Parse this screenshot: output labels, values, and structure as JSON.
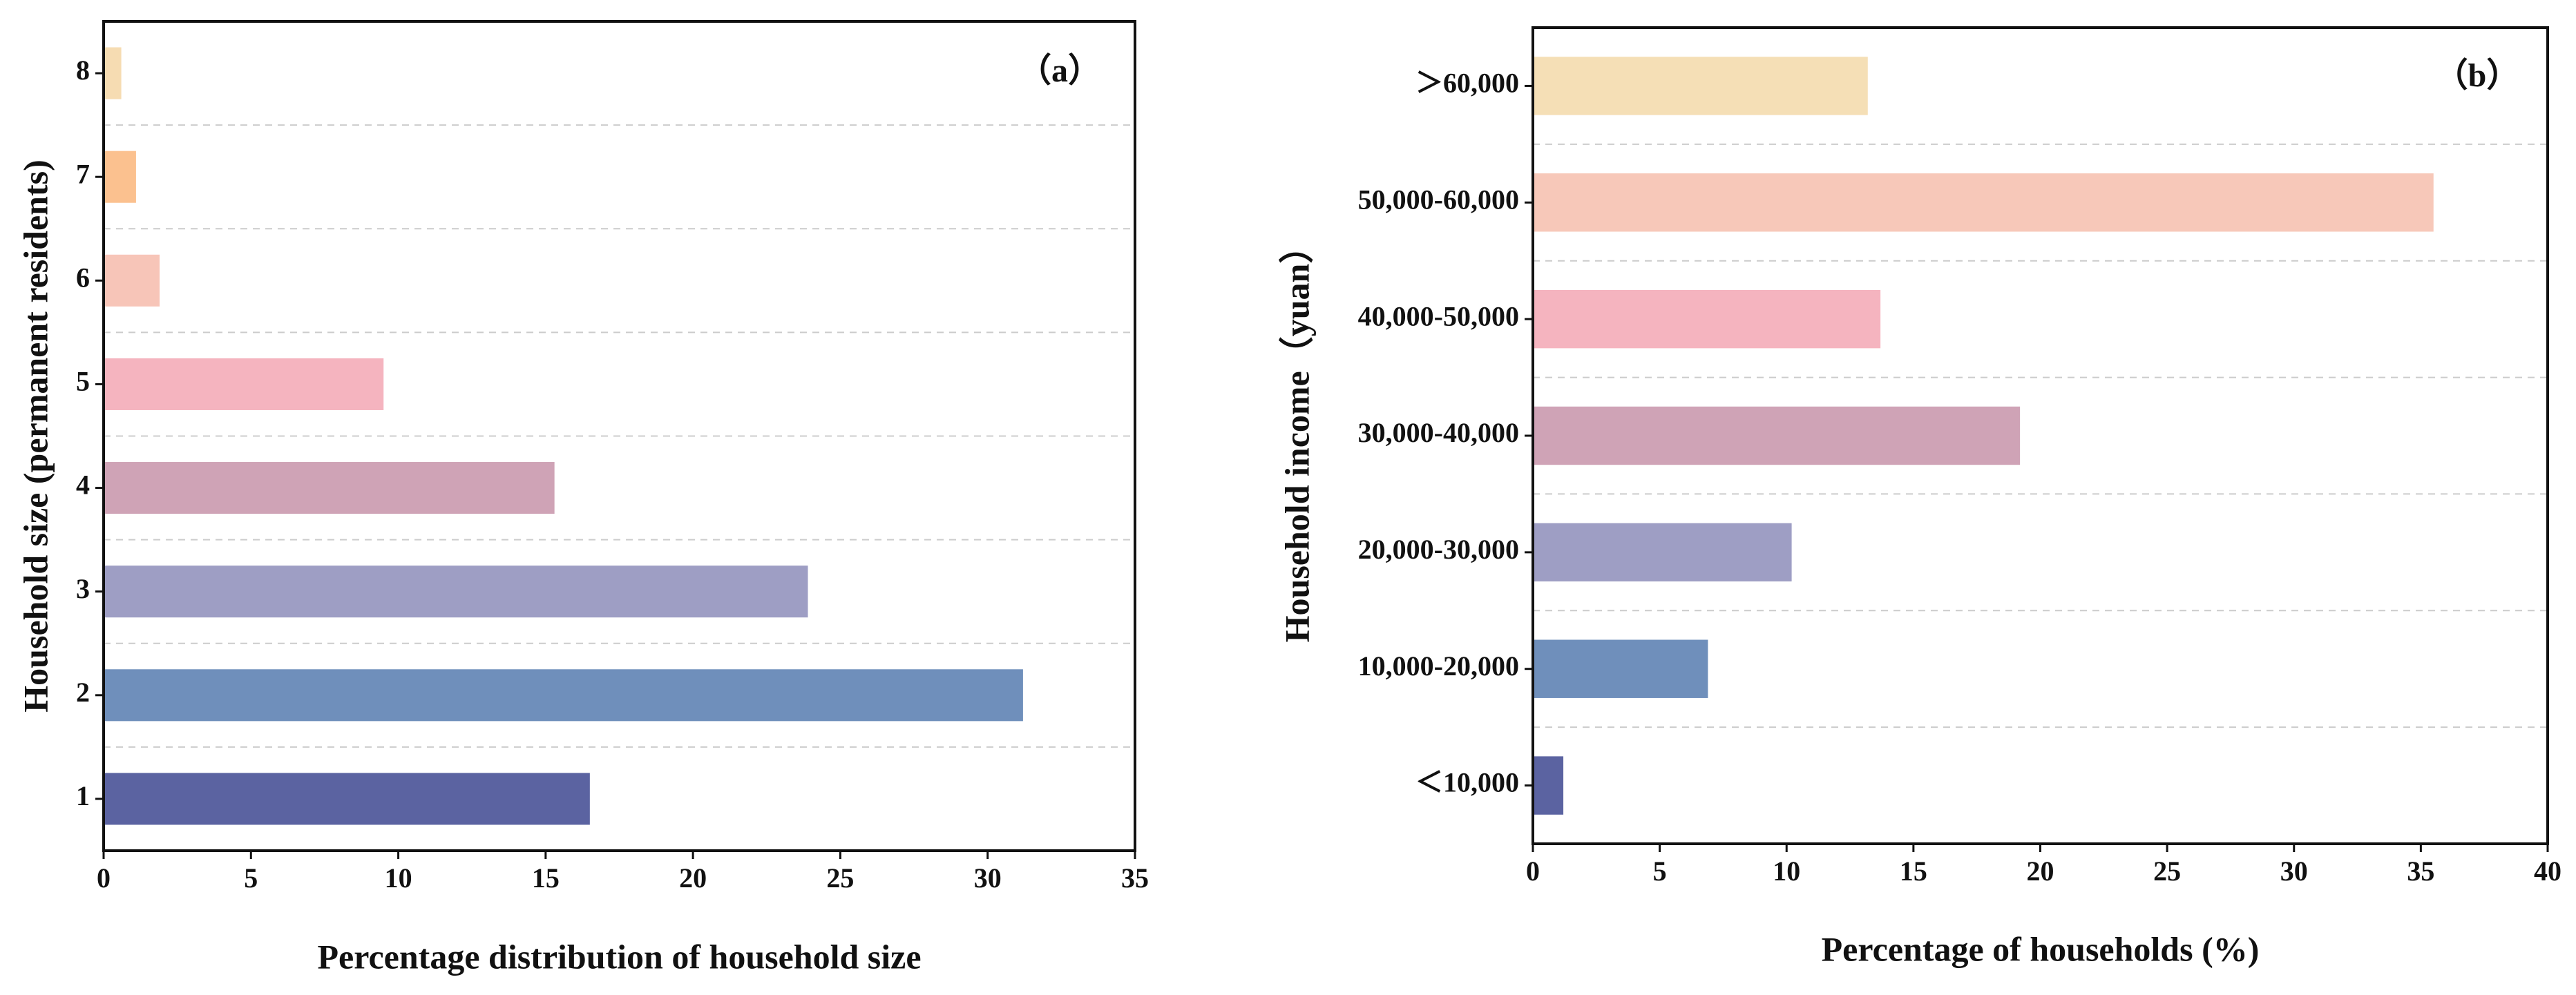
{
  "chart_data": [
    {
      "type": "barh",
      "annotation": "（a）",
      "xlabel": "Percentage distribution of household size",
      "ylabel": "Household size (permanent residents)",
      "categories": [
        "1",
        "2",
        "3",
        "4",
        "5",
        "6",
        "7",
        "8"
      ],
      "values": [
        16.5,
        31.2,
        23.9,
        15.3,
        9.5,
        1.9,
        1.1,
        0.6
      ],
      "colors": [
        "#5b63a1",
        "#6f8fbb",
        "#9e9ec4",
        "#cfa3b6",
        "#f5b4bf",
        "#f7c5b8",
        "#fbc18f",
        "#f6dcb2"
      ],
      "xlim": [
        0,
        35
      ],
      "xticks": [
        0,
        5,
        10,
        15,
        20,
        25,
        30,
        35
      ],
      "grid": true
    },
    {
      "type": "barh",
      "annotation": "（b）",
      "xlabel": "Percentage of households (%)",
      "ylabel": "Household income（yuan）",
      "categories": [
        "＜10,000",
        "10,000-20,000",
        "20,000-30,000",
        "30,000-40,000",
        "40,000-50,000",
        "50,000-60,000",
        "＞60,000"
      ],
      "values": [
        1.2,
        6.9,
        10.2,
        19.2,
        13.7,
        35.5,
        13.2
      ],
      "colors": [
        "#5b63a1",
        "#6f8fbb",
        "#9e9ec4",
        "#cfa3b6",
        "#f5b4bf",
        "#f7c8b9",
        "#f5dfb6"
      ],
      "xlim": [
        0,
        40
      ],
      "xticks": [
        0,
        5,
        10,
        15,
        20,
        25,
        30,
        35,
        40
      ],
      "grid": true
    }
  ]
}
